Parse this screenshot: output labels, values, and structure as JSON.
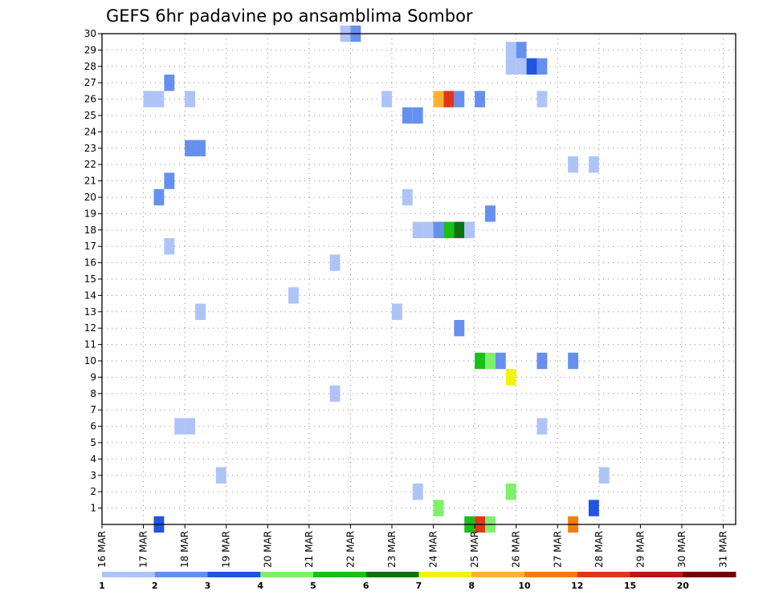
{
  "chart_data": {
    "type": "heatmap",
    "title": "GEFS 6hr padavine po ansamblima Sombor",
    "xlabel": "",
    "ylabel": "",
    "x_start_label": "16 MAR",
    "x_tick_labels": [
      "16 MAR",
      "17 MAR",
      "18 MAR",
      "19 MAR",
      "20 MAR",
      "21 MAR",
      "22 MAR",
      "23 MAR",
      "24 MAR",
      "25 MAR",
      "26 MAR",
      "27 MAR",
      "28 MAR",
      "29 MAR",
      "30 MAR",
      "31 MAR"
    ],
    "xlim_days": [
      0,
      15.3
    ],
    "time_step_hours": 6,
    "y_tick_labels": [
      "1",
      "2",
      "3",
      "4",
      "5",
      "6",
      "7",
      "8",
      "9",
      "10",
      "11",
      "12",
      "13",
      "14",
      "15",
      "16",
      "17",
      "18",
      "19",
      "20",
      "21",
      "22",
      "23",
      "24",
      "25",
      "26",
      "27",
      "28",
      "29",
      "30"
    ],
    "ylim_members": [
      0,
      30
    ],
    "grid": true,
    "legend": {
      "placement": "bottom",
      "levels": [
        "1",
        "2",
        "3",
        "4",
        "5",
        "6",
        "7",
        "8",
        "10",
        "12",
        "15",
        "20"
      ],
      "colors": [
        "#aec4f7",
        "#6690ef",
        "#1f55e0",
        "#7ef06a",
        "#18c018",
        "#0b7410",
        "#f4f20e",
        "#fab22e",
        "#f57d0f",
        "#e0371a",
        "#b91616",
        "#6e0707"
      ]
    },
    "precip_cells_units": "mm per 6h; x = time step index from 16 MAR 00Z, y = ensemble member",
    "cells": [
      {
        "x": 5,
        "y": 0,
        "v": 3.2
      },
      {
        "x": 4,
        "y": 26,
        "v": 1.5
      },
      {
        "x": 5,
        "y": 26,
        "v": 1.5
      },
      {
        "x": 6,
        "y": 27,
        "v": 2.5
      },
      {
        "x": 8,
        "y": 26,
        "v": 1.5
      },
      {
        "x": 8,
        "y": 23,
        "v": 2.5
      },
      {
        "x": 9,
        "y": 23,
        "v": 2.5
      },
      {
        "x": 6,
        "y": 21,
        "v": 2.5
      },
      {
        "x": 5,
        "y": 20,
        "v": 2.5
      },
      {
        "x": 6,
        "y": 17,
        "v": 1.5
      },
      {
        "x": 9,
        "y": 13,
        "v": 1.5
      },
      {
        "x": 7,
        "y": 6,
        "v": 1.5
      },
      {
        "x": 8,
        "y": 6,
        "v": 1.5
      },
      {
        "x": 11,
        "y": 3,
        "v": 1.5
      },
      {
        "x": 18,
        "y": 14,
        "v": 1.5
      },
      {
        "x": 22,
        "y": 16,
        "v": 1.5
      },
      {
        "x": 22,
        "y": 8,
        "v": 1.5
      },
      {
        "x": 23,
        "y": 30,
        "v": 1.5
      },
      {
        "x": 24,
        "y": 30,
        "v": 2.5
      },
      {
        "x": 27,
        "y": 26,
        "v": 1.5
      },
      {
        "x": 28,
        "y": 13,
        "v": 1.5
      },
      {
        "x": 29,
        "y": 20,
        "v": 1.5
      },
      {
        "x": 29,
        "y": 25,
        "v": 2.5
      },
      {
        "x": 30,
        "y": 25,
        "v": 2.5
      },
      {
        "x": 30,
        "y": 18,
        "v": 1.5
      },
      {
        "x": 31,
        "y": 18,
        "v": 1.5
      },
      {
        "x": 30,
        "y": 2,
        "v": 1.5
      },
      {
        "x": 32,
        "y": 1,
        "v": 4.5
      },
      {
        "x": 32,
        "y": 26,
        "v": 9.5
      },
      {
        "x": 33,
        "y": 26,
        "v": 14
      },
      {
        "x": 34,
        "y": 26,
        "v": 2.5
      },
      {
        "x": 32,
        "y": 18,
        "v": 2.5
      },
      {
        "x": 33,
        "y": 18,
        "v": 5.5
      },
      {
        "x": 34,
        "y": 18,
        "v": 6.5
      },
      {
        "x": 35,
        "y": 18,
        "v": 1.5
      },
      {
        "x": 34,
        "y": 12,
        "v": 2.5
      },
      {
        "x": 35,
        "y": 0,
        "v": 5.5
      },
      {
        "x": 36,
        "y": 0,
        "v": 14
      },
      {
        "x": 37,
        "y": 0,
        "v": 4.5
      },
      {
        "x": 36,
        "y": 26,
        "v": 2.5
      },
      {
        "x": 36,
        "y": 10,
        "v": 5.5
      },
      {
        "x": 37,
        "y": 10,
        "v": 4.5
      },
      {
        "x": 38,
        "y": 10,
        "v": 2.5
      },
      {
        "x": 37,
        "y": 19,
        "v": 2.5
      },
      {
        "x": 39,
        "y": 9,
        "v": 7.5
      },
      {
        "x": 39,
        "y": 2,
        "v": 4.5
      },
      {
        "x": 39,
        "y": 29,
        "v": 1.5
      },
      {
        "x": 40,
        "y": 29,
        "v": 2.5
      },
      {
        "x": 39,
        "y": 28,
        "v": 1.5
      },
      {
        "x": 40,
        "y": 28,
        "v": 1.5
      },
      {
        "x": 41,
        "y": 28,
        "v": 3.5
      },
      {
        "x": 42,
        "y": 28,
        "v": 2.5
      },
      {
        "x": 42,
        "y": 26,
        "v": 1.5
      },
      {
        "x": 42,
        "y": 10,
        "v": 2.5
      },
      {
        "x": 42,
        "y": 6,
        "v": 1.5
      },
      {
        "x": 45,
        "y": 0,
        "v": 11
      },
      {
        "x": 45,
        "y": 10,
        "v": 2.5
      },
      {
        "x": 45,
        "y": 22,
        "v": 1.5
      },
      {
        "x": 47,
        "y": 22,
        "v": 1.5
      },
      {
        "x": 47,
        "y": 1,
        "v": 3.5
      },
      {
        "x": 48,
        "y": 3,
        "v": 1.5
      }
    ]
  }
}
